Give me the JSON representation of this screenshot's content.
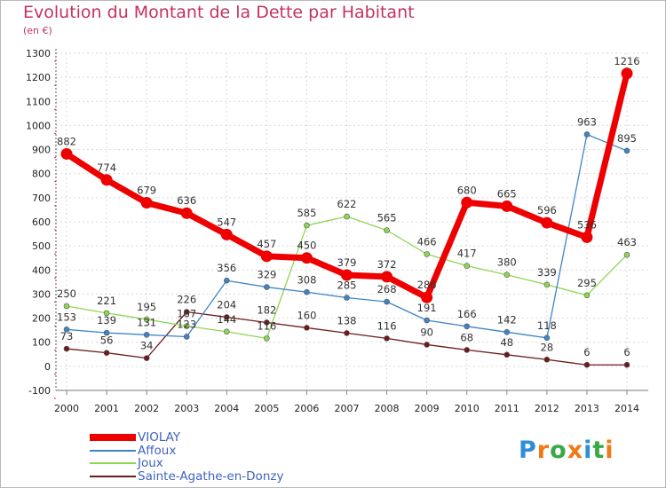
{
  "header": {
    "title": "Evolution du Montant de la Dette par Habitant",
    "subtitle": "(en €)"
  },
  "chart_data": {
    "type": "line",
    "x": [
      2000,
      2001,
      2002,
      2003,
      2004,
      2005,
      2006,
      2007,
      2008,
      2009,
      2010,
      2011,
      2012,
      2013,
      2014
    ],
    "ylim": [
      -100,
      1300
    ],
    "yticks": [
      -100,
      0,
      100,
      200,
      300,
      400,
      500,
      600,
      700,
      800,
      900,
      1000,
      1100,
      1200,
      1300
    ],
    "grid": true,
    "legend_position": "bottom-left",
    "series": [
      {
        "name": "VIOLAY",
        "color": "#ee0000",
        "values": [
          882,
          774,
          679,
          636,
          547,
          457,
          450,
          379,
          372,
          286,
          680,
          665,
          596,
          536,
          1216
        ],
        "labels": [
          "882",
          "774",
          "679",
          "636",
          "547",
          "457",
          "450",
          "379",
          "372",
          "286",
          "680",
          "665",
          "596",
          "536",
          "1216"
        ]
      },
      {
        "name": "Affoux",
        "color": "#3f85c6",
        "values": [
          153,
          139,
          131,
          123,
          356,
          329,
          308,
          285,
          268,
          191,
          166,
          142,
          118,
          963,
          895
        ],
        "labels": [
          "153",
          "139",
          "131",
          "123",
          "356",
          "329",
          "308",
          "285",
          "268",
          "191",
          "166",
          "142",
          "118",
          "963",
          "895"
        ]
      },
      {
        "name": "Joux",
        "color": "#8ed653",
        "values": [
          250,
          221,
          195,
          167,
          144,
          116,
          585,
          622,
          565,
          466,
          417,
          380,
          339,
          295,
          463
        ],
        "labels": [
          "250",
          "221",
          "195",
          "167",
          "144",
          "116",
          "585",
          "622",
          "565",
          "466",
          "417",
          "380",
          "339",
          "295",
          "463"
        ]
      },
      {
        "name": "Sainte-Agathe-en-Donzy",
        "color": "#6e1a1a",
        "values": [
          73,
          56,
          34,
          226,
          204,
          182,
          160,
          138,
          116,
          90,
          68,
          48,
          28,
          6,
          6
        ],
        "labels": [
          "73",
          "56",
          "34",
          "226",
          "204",
          "182",
          "160",
          "138",
          "116",
          "90",
          "68",
          "48",
          "28",
          "6",
          "6"
        ]
      }
    ]
  },
  "logo": {
    "letters": [
      "P",
      "r",
      "o",
      "x",
      "i",
      "t",
      "i"
    ],
    "colors": [
      "#2e8fd8",
      "#f07a18",
      "#39a845",
      "#f07a18",
      "#2e8fd8",
      "#39a845",
      "#f07a18"
    ]
  }
}
